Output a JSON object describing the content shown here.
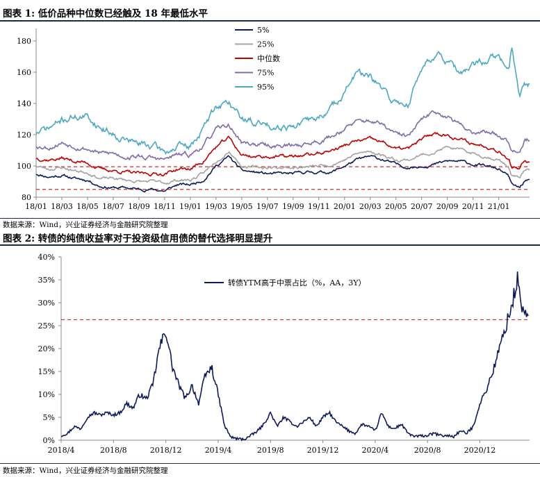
{
  "figure1": {
    "title": "图表 1:  低价品种中位数已经触及 18 年最低水平",
    "source": "数据来源：Wind，兴业证券经济与金融研究院整理"
  },
  "figure2": {
    "title": "图表 2:  转债的纯债收益率对于投资级信用债的替代选择明显提升",
    "source": "数据来源：Wind，兴业证券经济与金融研究院整理"
  },
  "chart_data": [
    {
      "type": "line",
      "title": "低价品种中位数已经触及 18 年最低水平",
      "xlabel": "",
      "ylabel": "",
      "x_range": [
        0,
        38.4
      ],
      "x_tick_positions": [
        0,
        2,
        4,
        6,
        8,
        10,
        12,
        14,
        16,
        18,
        20,
        22,
        24,
        26,
        28,
        30,
        32,
        34,
        36
      ],
      "x_tick_labels": [
        "18/01",
        "18/03",
        "18/05",
        "18/07",
        "18/09",
        "18/11",
        "19/01",
        "19/03",
        "19/05",
        "19/07",
        "19/09",
        "19/11",
        "20/01",
        "20/03",
        "20/05",
        "20/07",
        "20/09",
        "20/11",
        "21/01"
      ],
      "ylim": [
        80,
        188
      ],
      "y_ticks": [
        80,
        100,
        120,
        140,
        160,
        180
      ],
      "grid": false,
      "legend": "top-center",
      "reference_lines": [
        99.5,
        85
      ],
      "x_knots": [
        0,
        1,
        2,
        3,
        4,
        5,
        6,
        7,
        8,
        9,
        10,
        11,
        12,
        13,
        14,
        15,
        16,
        17,
        18,
        19,
        20,
        21,
        22,
        23,
        24,
        25,
        26,
        27,
        28,
        29,
        30,
        31,
        32,
        33,
        34,
        35,
        36,
        36.8,
        37,
        37.6,
        38
      ],
      "series": [
        {
          "name": "5%",
          "color": "#0b1a5a",
          "seed": 11,
          "noise": 1.2,
          "values": [
            95,
            93,
            94,
            92,
            91,
            87,
            86,
            86,
            85,
            85,
            84,
            88,
            88,
            91,
            100,
            106,
            97,
            96,
            95,
            95,
            95,
            96,
            96,
            96,
            100,
            104,
            106,
            104,
            101,
            99,
            100,
            101,
            103,
            103,
            101,
            100,
            98,
            93,
            88,
            86,
            90
          ]
        },
        {
          "name": "25%",
          "color": "#a3a3a3",
          "seed": 23,
          "noise": 1.3,
          "values": [
            100,
            98,
            99,
            97,
            96,
            92,
            92,
            91,
            90,
            90,
            89,
            91,
            91,
            95,
            103,
            110,
            100,
            99,
            99,
            99,
            99,
            99,
            100,
            101,
            104,
            108,
            109,
            107,
            104,
            104,
            107,
            109,
            112,
            110,
            108,
            106,
            104,
            99,
            94,
            92,
            97
          ]
        },
        {
          "name": "中位数",
          "color": "#c00000",
          "seed": 37,
          "noise": 1.5,
          "values": [
            105,
            104,
            105,
            103,
            102,
            98,
            97,
            96,
            95,
            95,
            95,
            98,
            98,
            103,
            112,
            118,
            107,
            106,
            106,
            106,
            106,
            107,
            108,
            110,
            113,
            116,
            117,
            115,
            111,
            111,
            117,
            121,
            120,
            117,
            114,
            113,
            110,
            105,
            99,
            97,
            103
          ]
        },
        {
          "name": "75%",
          "color": "#7f6aaa",
          "seed": 53,
          "noise": 2.0,
          "values": [
            113,
            112,
            115,
            113,
            111,
            108,
            108,
            106,
            106,
            105,
            104,
            107,
            107,
            113,
            123,
            126,
            115,
            114,
            113,
            113,
            113,
            114,
            116,
            119,
            124,
            128,
            129,
            126,
            120,
            119,
            129,
            135,
            132,
            126,
            122,
            122,
            120,
            116,
            112,
            110,
            117
          ]
        },
        {
          "name": "95%",
          "color": "#4ba7c3",
          "seed": 71,
          "noise": 3.2,
          "values": [
            121,
            124,
            129,
            132,
            131,
            125,
            121,
            117,
            114,
            113,
            109,
            112,
            112,
            124,
            138,
            141,
            130,
            128,
            126,
            126,
            126,
            128,
            131,
            137,
            148,
            160,
            156,
            148,
            140,
            140,
            163,
            172,
            167,
            158,
            163,
            168,
            170,
            160,
            175,
            147,
            152
          ]
        }
      ]
    },
    {
      "type": "line",
      "title": "转债的纯债收益率对于投资级信用债的替代选择明显提升",
      "xlabel": "",
      "ylabel": "",
      "x_range": [
        0,
        35.8
      ],
      "x_tick_positions": [
        0,
        4,
        8,
        12,
        16,
        20,
        24,
        28,
        32
      ],
      "x_tick_labels": [
        "2018/4",
        "2018/8",
        "2018/12",
        "2019/4",
        "2019/8",
        "2019/12",
        "2020/4",
        "2020/8",
        "2020/12"
      ],
      "ylim": [
        0,
        40
      ],
      "y_ticks": [
        0,
        5,
        10,
        15,
        20,
        25,
        30,
        35,
        40
      ],
      "y_tick_labels": [
        "0%",
        "5%",
        "10%",
        "15%",
        "20%",
        "25%",
        "30%",
        "35%",
        "40%"
      ],
      "grid": false,
      "legend": "top-center",
      "reference_lines": [
        26.3
      ],
      "series": [
        {
          "name": "转债YTM高于中票占比（%，AA，3Y）",
          "color": "#0b1a5a",
          "seed": 97,
          "points": [
            [
              0,
              1
            ],
            [
              0.5,
              1.5
            ],
            [
              1,
              3
            ],
            [
              1.5,
              2.5
            ],
            [
              2,
              5
            ],
            [
              2.5,
              6
            ],
            [
              3,
              5.5
            ],
            [
              3.5,
              6
            ],
            [
              4,
              5.5
            ],
            [
              4.5,
              6
            ],
            [
              5,
              8
            ],
            [
              5.5,
              7
            ],
            [
              6,
              10
            ],
            [
              6.5,
              9
            ],
            [
              7,
              12
            ],
            [
              7.5,
              20
            ],
            [
              8,
              24
            ],
            [
              8.5,
              16
            ],
            [
              9,
              12
            ],
            [
              9.5,
              9
            ],
            [
              10,
              12
            ],
            [
              10.5,
              8
            ],
            [
              11,
              14
            ],
            [
              11.5,
              16
            ],
            [
              12,
              10
            ],
            [
              12.5,
              3
            ],
            [
              13,
              0.6
            ],
            [
              13.5,
              0.3
            ],
            [
              14,
              0.2
            ],
            [
              14.5,
              1
            ],
            [
              15,
              2
            ],
            [
              15.5,
              3.5
            ],
            [
              16,
              6
            ],
            [
              16.5,
              3
            ],
            [
              17,
              5
            ],
            [
              17.5,
              4
            ],
            [
              18,
              3
            ],
            [
              18.5,
              4
            ],
            [
              19,
              5
            ],
            [
              19.5,
              3
            ],
            [
              20,
              5
            ],
            [
              20.5,
              6
            ],
            [
              21,
              4
            ],
            [
              21.5,
              3
            ],
            [
              22,
              2
            ],
            [
              22.5,
              1.5
            ],
            [
              23,
              3.5
            ],
            [
              23.5,
              3
            ],
            [
              24,
              2
            ],
            [
              24.5,
              6
            ],
            [
              25,
              3
            ],
            [
              25.5,
              2.5
            ],
            [
              26,
              3.5
            ],
            [
              26.5,
              1.5
            ],
            [
              27,
              0.8
            ],
            [
              28,
              1
            ],
            [
              28.5,
              1.5
            ],
            [
              29,
              1
            ],
            [
              29.5,
              1
            ],
            [
              30,
              0.8
            ],
            [
              30.5,
              2
            ],
            [
              31,
              1.5
            ],
            [
              31.5,
              3
            ],
            [
              32,
              8
            ],
            [
              32.5,
              11
            ],
            [
              33,
              15
            ],
            [
              33.5,
              20
            ],
            [
              34,
              25
            ],
            [
              34.5,
              30
            ],
            [
              34.9,
              35.5
            ],
            [
              35.1,
              30
            ],
            [
              35.4,
              28
            ],
            [
              35.7,
              26.5
            ]
          ]
        }
      ]
    }
  ]
}
